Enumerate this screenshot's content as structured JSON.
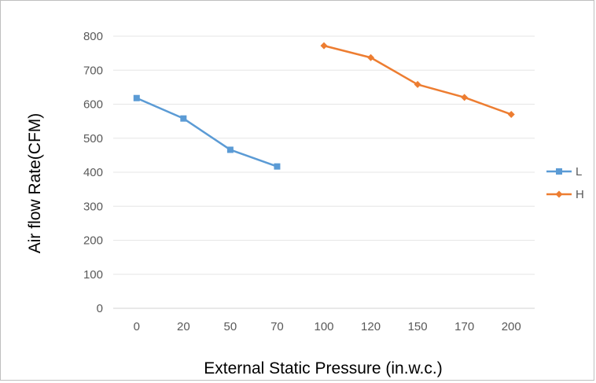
{
  "chart_data": {
    "type": "line",
    "categories": [
      "0",
      "20",
      "50",
      "70",
      "100",
      "120",
      "150",
      "170",
      "200"
    ],
    "series": [
      {
        "name": "L",
        "color": "#5b9bd5",
        "marker": "square",
        "values": [
          618,
          558,
          466,
          417,
          null,
          null,
          null,
          null,
          null
        ]
      },
      {
        "name": "H",
        "color": "#ed7d31",
        "marker": "diamond",
        "values": [
          null,
          null,
          null,
          null,
          772,
          737,
          658,
          620,
          570
        ]
      }
    ],
    "title": "",
    "xlabel": "External Static Pressure (in.w.c.)",
    "ylabel": "Air flow Rate(CFM)",
    "ylim": [
      0,
      800
    ],
    "yticks": [
      0,
      100,
      200,
      300,
      400,
      500,
      600,
      700,
      800
    ],
    "grid": "horizontal",
    "legend": "right"
  }
}
